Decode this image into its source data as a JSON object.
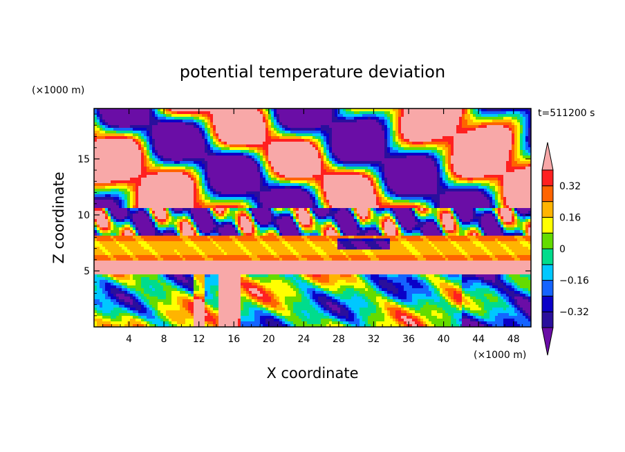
{
  "chart_data": {
    "type": "heatmap",
    "title": "potential temperature deviation",
    "xlabel": "X coordinate",
    "ylabel": "Z coordinate",
    "x_unit": "(×1000 m)",
    "y_unit": "(×1000 m)",
    "time_label": "t=511200 s",
    "xlim": [
      0,
      50
    ],
    "ylim": [
      0,
      19.5
    ],
    "x_ticks": [
      4,
      8,
      12,
      16,
      20,
      24,
      28,
      32,
      36,
      40,
      44,
      48
    ],
    "y_ticks": [
      5,
      10,
      15
    ],
    "colorbar": {
      "levels": [
        -0.4,
        -0.32,
        -0.24,
        -0.16,
        -0.08,
        0,
        0.08,
        0.16,
        0.24,
        0.32,
        0.4
      ],
      "labeled_ticks": [
        {
          "value": -0.32,
          "label": "−0.32"
        },
        {
          "value": -0.16,
          "label": "−0.16"
        },
        {
          "value": 0,
          "label": "0"
        },
        {
          "value": 0.16,
          "label": "0.16"
        },
        {
          "value": 0.32,
          "label": "0.32"
        }
      ],
      "colors": [
        "#6a0da6",
        "#2a0f9c",
        "#0a00c8",
        "#1464ff",
        "#00c8ff",
        "#00dc8c",
        "#64dc00",
        "#ffff00",
        "#ffb400",
        "#ff6400",
        "#ff2020",
        "#f8a8a8"
      ]
    }
  }
}
